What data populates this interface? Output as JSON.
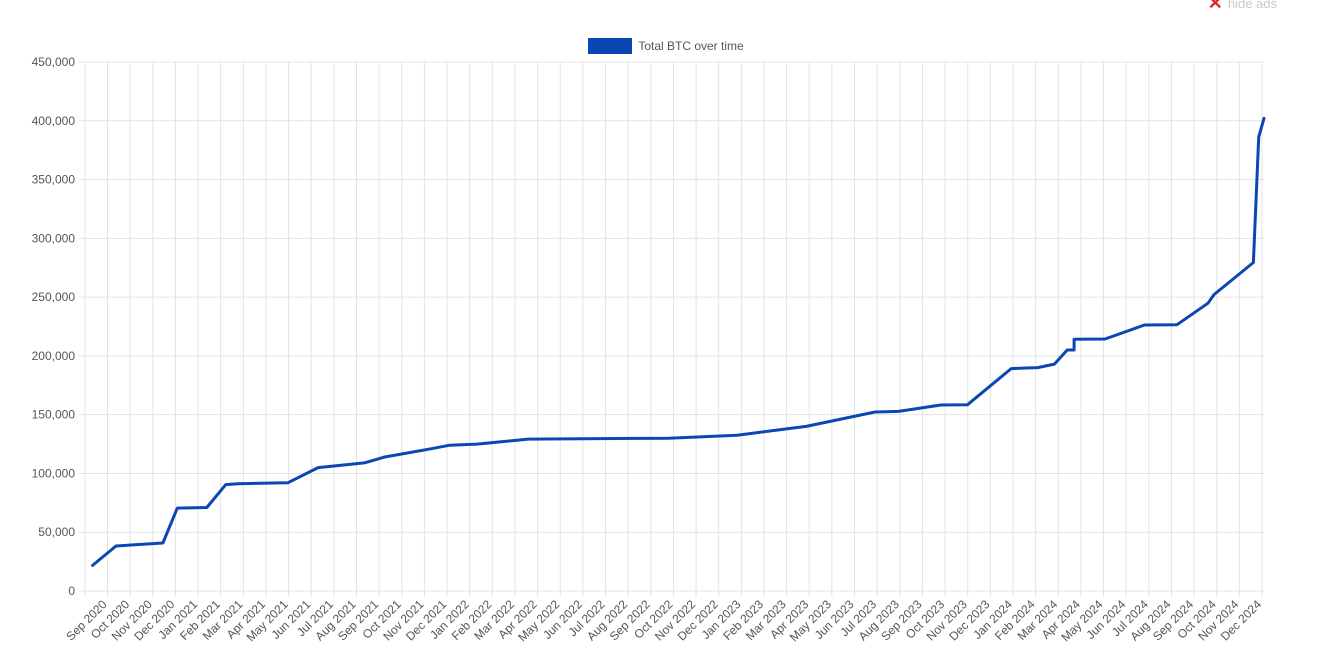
{
  "hide_ads_label": "hide ads",
  "colors": {
    "line": "#0b47b2",
    "grid": "#e3e3e3",
    "close": "#e3262b"
  },
  "chart_data": {
    "type": "line",
    "series": [
      {
        "name": "Total BTC over time",
        "points": [
          [
            "2020-08-30",
            21800
          ],
          [
            "2020-09-30",
            38300
          ],
          [
            "2020-12-01",
            40800
          ],
          [
            "2020-12-20",
            70500
          ],
          [
            "2021-01-28",
            71000
          ],
          [
            "2021-02-22",
            90500
          ],
          [
            "2021-03-10",
            91300
          ],
          [
            "2021-05-15",
            92000
          ],
          [
            "2021-06-24",
            105000
          ],
          [
            "2021-08-24",
            109000
          ],
          [
            "2021-09-20",
            114000
          ],
          [
            "2021-11-20",
            121000
          ],
          [
            "2021-12-15",
            124000
          ],
          [
            "2022-01-20",
            125000
          ],
          [
            "2022-03-29",
            129200
          ],
          [
            "2022-09-30",
            130000
          ],
          [
            "2022-12-30",
            132500
          ],
          [
            "2023-03-31",
            140000
          ],
          [
            "2023-06-30",
            152300
          ],
          [
            "2023-07-31",
            152800
          ],
          [
            "2023-09-25",
            158200
          ],
          [
            "2023-10-30",
            158400
          ],
          [
            "2023-12-27",
            189200
          ],
          [
            "2024-01-31",
            190000
          ],
          [
            "2024-02-22",
            193000
          ],
          [
            "2024-03-10",
            205000
          ],
          [
            "2024-03-19",
            205000
          ],
          [
            "2024-03-19",
            214200
          ],
          [
            "2024-04-29",
            214400
          ],
          [
            "2024-06-20",
            226300
          ],
          [
            "2024-08-02",
            226500
          ],
          [
            "2024-09-12",
            244800
          ],
          [
            "2024-09-20",
            252200
          ],
          [
            "2024-11-11",
            279400
          ],
          [
            "2024-11-18",
            386000
          ],
          [
            "2024-11-25",
            402100
          ]
        ]
      }
    ],
    "x_ticks": [
      "Sep 2020",
      "Oct 2020",
      "Nov 2020",
      "Dec 2020",
      "Jan 2021",
      "Feb 2021",
      "Mar 2021",
      "Apr 2021",
      "May 2021",
      "Jun 2021",
      "Jul 2021",
      "Aug 2021",
      "Sep 2021",
      "Oct 2021",
      "Nov 2021",
      "Dec 2021",
      "Jan 2022",
      "Feb 2022",
      "Mar 2022",
      "Apr 2022",
      "May 2022",
      "Jun 2022",
      "Jul 2022",
      "Aug 2022",
      "Sep 2022",
      "Oct 2022",
      "Nov 2022",
      "Dec 2022",
      "Jan 2023",
      "Feb 2023",
      "Mar 2023",
      "Apr 2023",
      "May 2023",
      "Jun 2023",
      "Jul 2023",
      "Aug 2023",
      "Sep 2023",
      "Oct 2023",
      "Nov 2023",
      "Dec 2023",
      "Jan 2024",
      "Feb 2024",
      "Mar 2024",
      "Apr 2024",
      "May 2024",
      "Jun 2024",
      "Jul 2024",
      "Aug 2024",
      "Sep 2024",
      "Oct 2024",
      "Nov 2024",
      "Dec 2024"
    ],
    "y_ticks": [
      "0",
      "50,000",
      "100,000",
      "150,000",
      "200,000",
      "250,000",
      "300,000",
      "350,000",
      "400,000",
      "450,000"
    ],
    "ylim": [
      0,
      450000
    ],
    "xlim": [
      "2020-08-20",
      "2024-11-25"
    ],
    "grid": true,
    "legend_position": "top-center",
    "x_axis": "time"
  }
}
